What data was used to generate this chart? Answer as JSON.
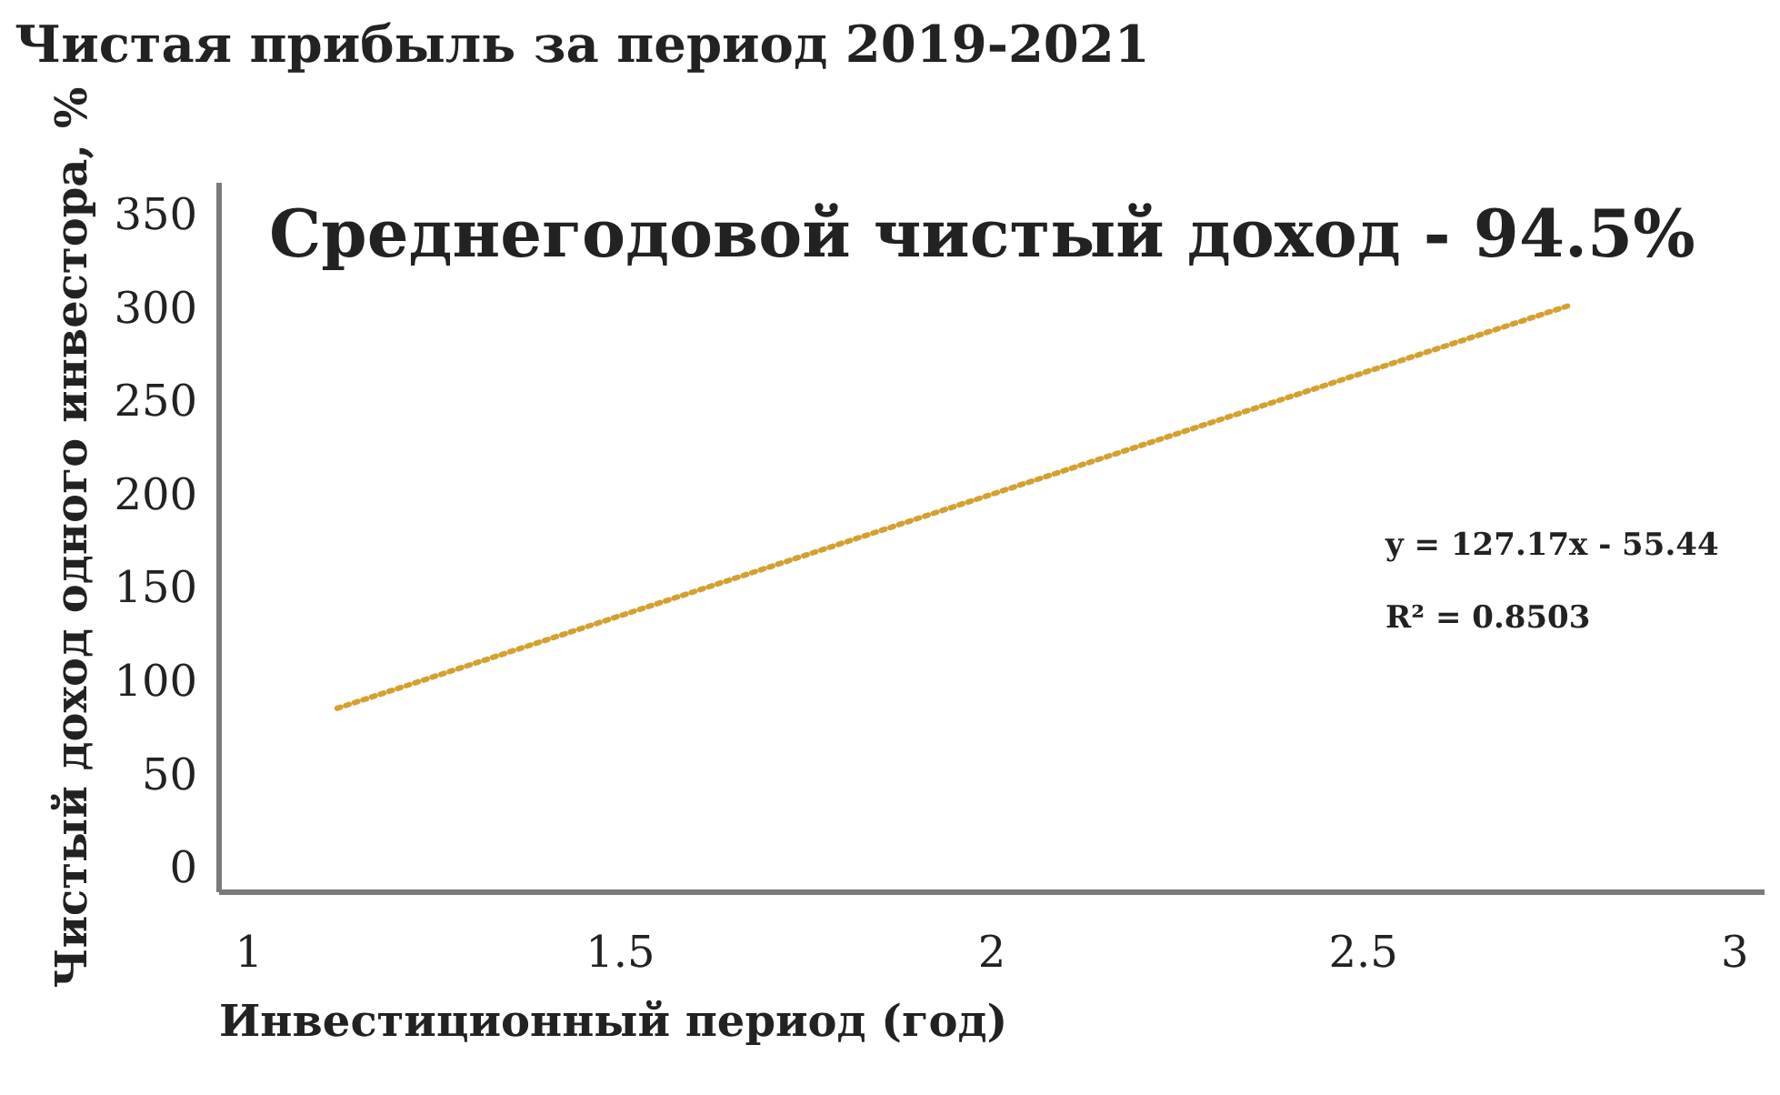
{
  "chart_data": {
    "type": "line",
    "title": "Чистая прибыль за период 2019-2021",
    "xlabel": "Инвестиционный период (год)",
    "ylabel": "Чистый доход одного инвестора, %",
    "annotations": [
      "Среднегодовой чистый доход - 94.5%",
      "y = 127.17x - 55.44",
      "R² = 0.8503"
    ],
    "series": [
      {
        "color": "#d4a030",
        "x": [
          1.12,
          2.78
        ],
        "values": [
          86,
          302
        ]
      }
    ],
    "line_style": "dotted",
    "marker": "none",
    "xlim": [
      0.96,
      3.04
    ],
    "xticks": [
      1,
      1.5,
      2,
      2.5,
      3
    ],
    "ylim": [
      -12,
      368
    ],
    "yticks": [
      0,
      50,
      100,
      150,
      200,
      250,
      300,
      350
    ]
  }
}
